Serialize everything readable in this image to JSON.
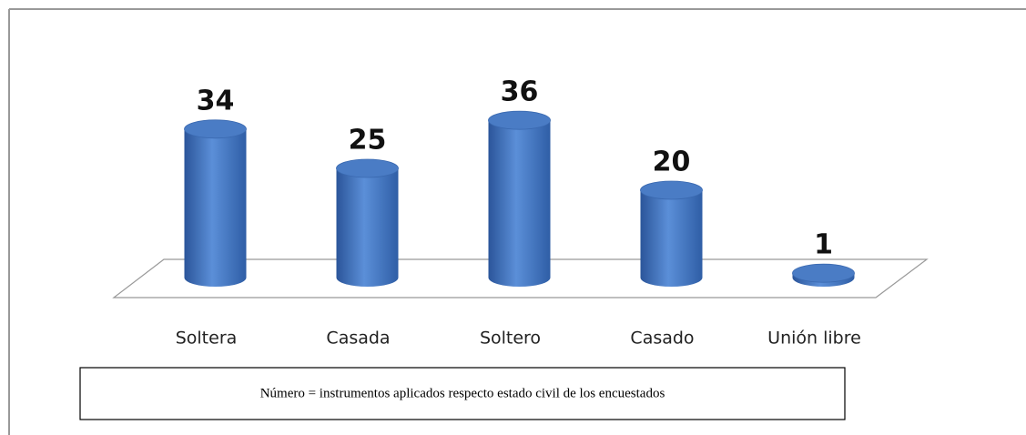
{
  "chart_data": {
    "type": "bar",
    "categories": [
      "Soltera",
      "Casada",
      "Soltero",
      "Casado",
      "Unión libre"
    ],
    "values": [
      34,
      25,
      36,
      20,
      1
    ],
    "color": "#4a7cc5",
    "note": "Número = instrumentos aplicados respecto estado civil de los encuestados"
  }
}
